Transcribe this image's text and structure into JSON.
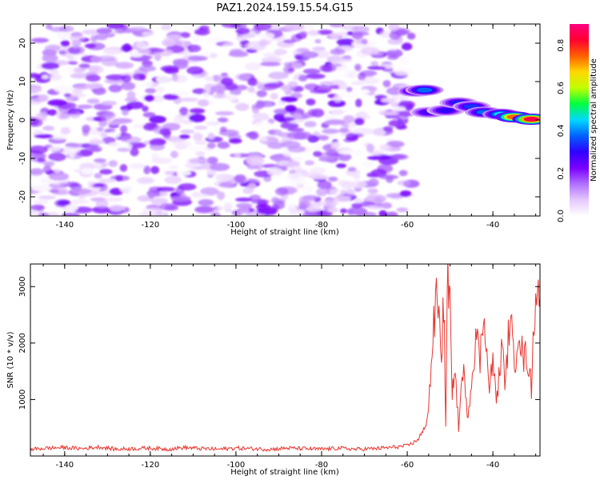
{
  "figure_title": "PAZ1.2024.159.15.54.G15",
  "chart_data": [
    {
      "type": "heatmap",
      "title": "PAZ1.2024.159.15.54.G15",
      "xlabel": "Height of straight line (km)",
      "ylabel": "Frequency (Hz)",
      "xlim": [
        -148,
        -29
      ],
      "ylim": [
        -25,
        25
      ],
      "xticks": [
        "-140",
        "-120",
        "-100",
        "-80",
        "-60",
        "-40"
      ],
      "xtick_values": [
        -140,
        -120,
        -100,
        -80,
        -60,
        -40
      ],
      "yticks": [
        "-20",
        "-10",
        "0",
        "10",
        "20"
      ],
      "ytick_values": [
        -20,
        -10,
        0,
        10,
        20
      ],
      "colorbar": {
        "label": "Normalized spectral amplitude",
        "ticks": [
          "0.0",
          "0.2",
          "0.4",
          "0.6",
          "0.8"
        ],
        "tick_values": [
          0.0,
          0.2,
          0.4,
          0.6,
          0.8
        ],
        "range": [
          0.0,
          0.9
        ],
        "colors": [
          "#ffffff",
          "#e6c8ff",
          "#b070ff",
          "#7a00ff",
          "#3000ff",
          "#0060ff",
          "#00d8ff",
          "#00ff40",
          "#c0ff00",
          "#ffd800",
          "#ff6000",
          "#ff0030",
          "#ff0080"
        ]
      },
      "noise_region_x": [
        -148,
        -59
      ],
      "noise_region_y": [
        -25,
        25
      ],
      "noise_level": 0.15,
      "signal_track": [
        {
          "x": -58,
          "y": 7.5,
          "value": 0.35
        },
        {
          "x": -56,
          "y": 7.8,
          "value": 0.38
        },
        {
          "x": -55,
          "y": 2.0,
          "value": 0.28
        },
        {
          "x": -51,
          "y": 2.5,
          "value": 0.3
        },
        {
          "x": -48,
          "y": 4.5,
          "value": 0.32
        },
        {
          "x": -45,
          "y": 3.5,
          "value": 0.34
        },
        {
          "x": -42,
          "y": 2.0,
          "value": 0.38
        },
        {
          "x": -38,
          "y": 1.5,
          "value": 0.45
        },
        {
          "x": -35,
          "y": 0.8,
          "value": 0.75
        },
        {
          "x": -31,
          "y": 0.2,
          "value": 0.85
        }
      ]
    },
    {
      "type": "line",
      "xlabel": "Height of straight line (km)",
      "ylabel": "SNR (10 * v/v)",
      "xlim": [
        -148,
        -29
      ],
      "ylim": [
        0,
        3400
      ],
      "xticks": [
        "-140",
        "-120",
        "-100",
        "-80",
        "-60",
        "-40"
      ],
      "xtick_values": [
        -140,
        -120,
        -100,
        -80,
        -60,
        -40
      ],
      "yticks": [
        "1000",
        "2000",
        "3000"
      ],
      "ytick_values": [
        1000,
        2000,
        3000
      ],
      "color": "#e8352f",
      "series": [
        {
          "x": [
            -148,
            -144,
            -140,
            -136,
            -132,
            -128,
            -124,
            -120,
            -116,
            -112,
            -108,
            -104,
            -100,
            -96,
            -92,
            -88,
            -84,
            -80,
            -76,
            -72,
            -68,
            -64,
            -60,
            -58,
            -56,
            -55,
            -54,
            -53,
            -52,
            -51.5,
            -51,
            -50.5,
            -50,
            -49.5,
            -49,
            -48,
            -47,
            -46,
            -45,
            -44,
            -43,
            -42,
            -41,
            -40,
            -39,
            -38,
            -37,
            -36,
            -35,
            -34,
            -33,
            -32,
            -31,
            -30,
            -29
          ],
          "y": [
            120,
            140,
            150,
            130,
            160,
            120,
            130,
            140,
            120,
            150,
            130,
            120,
            140,
            130,
            120,
            140,
            130,
            120,
            140,
            120,
            130,
            150,
            180,
            260,
            450,
            900,
            2100,
            2900,
            1800,
            2800,
            600,
            3400,
            2600,
            900,
            1700,
            500,
            1600,
            700,
            1300,
            2200,
            1700,
            2700,
            1200,
            1600,
            1000,
            1900,
            1300,
            2600,
            1500,
            2400,
            1700,
            1800,
            1200,
            3100,
            2800
          ]
        }
      ]
    }
  ]
}
